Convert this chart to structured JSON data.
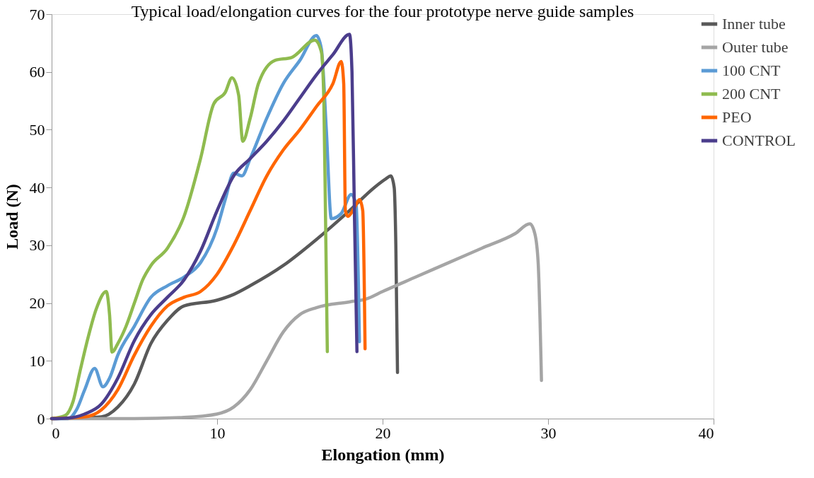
{
  "chart_data": {
    "type": "line",
    "title": "Typical load/elongation curves for the four prototype nerve guide samples",
    "xlabel": "Elongation (mm)",
    "ylabel": "Load (N)",
    "xlim": [
      0,
      40
    ],
    "xticks": [
      0,
      10,
      20,
      30,
      40
    ],
    "ylim": [
      0,
      70
    ],
    "yticks": [
      0,
      10,
      20,
      30,
      40,
      50,
      60,
      70
    ],
    "grid": false,
    "legend": "right",
    "marker": "none",
    "line_style": "solid",
    "series": [
      {
        "name": "Inner tube",
        "color": "#595959",
        "x": [
          0,
          3,
          4,
          5,
          6,
          7,
          8,
          10,
          11,
          12,
          14,
          16,
          18,
          19.5,
          20.2,
          20.5,
          20.7,
          20.8,
          20.9
        ],
        "values": [
          0,
          0.3,
          2,
          6,
          13,
          17,
          19.5,
          20.5,
          21.5,
          23,
          26.5,
          31,
          36,
          40,
          41.5,
          42,
          40,
          30,
          8
        ]
      },
      {
        "name": "Outer tube",
        "color": "#a5a5a5",
        "x": [
          0,
          5,
          8,
          10,
          11,
          12,
          13,
          14,
          15,
          16,
          18,
          19,
          20,
          22,
          24,
          26,
          28,
          28.9,
          29.2,
          29.4,
          29.6
        ],
        "values": [
          0,
          0,
          0.2,
          0.8,
          2,
          5,
          10,
          15,
          18,
          19.2,
          20.2,
          20.7,
          22,
          24.5,
          27,
          29.5,
          32,
          33.7,
          32,
          27,
          6.6
        ]
      },
      {
        "name": "100 CNT",
        "color": "#5b9bd5",
        "x": [
          0,
          1,
          1.5,
          2,
          2.6,
          3.1,
          3.5,
          4,
          5,
          6,
          7,
          8,
          9,
          10,
          10.5,
          11,
          11.5,
          12,
          13,
          14,
          15,
          16,
          16.3,
          16.6,
          16.9,
          17.5,
          18.1,
          18.4,
          18.6
        ],
        "values": [
          0,
          0,
          1.5,
          5,
          8.7,
          5.5,
          7,
          11,
          16,
          21,
          23,
          24.5,
          27,
          33,
          38,
          42.5,
          42,
          45,
          52,
          58,
          62,
          66.3,
          64,
          50,
          34.6,
          35.5,
          38.8,
          37,
          13.3
        ]
      },
      {
        "name": "200 CNT",
        "color": "#8fbb4f",
        "x": [
          0,
          0.8,
          1.3,
          1.7,
          2.2,
          2.7,
          3.3,
          3.5,
          3.65,
          4,
          4.5,
          5,
          5.5,
          6,
          7,
          8,
          9,
          9.8,
          10.5,
          10.9,
          11.3,
          11.55,
          12,
          12.5,
          13.5,
          14.5,
          15.9,
          16.3,
          16.45,
          16.55,
          16.66
        ],
        "values": [
          0,
          0.5,
          3,
          8,
          14,
          19,
          22,
          18,
          11.5,
          13,
          16,
          20,
          24,
          26.5,
          29.5,
          35,
          45,
          54.5,
          56.5,
          59,
          56,
          48,
          52,
          58,
          62,
          62.5,
          65.5,
          63.5,
          55,
          35,
          11.6
        ]
      },
      {
        "name": "PEO",
        "color": "#ff6600",
        "x": [
          0,
          2,
          3,
          4,
          5,
          6,
          7,
          8,
          9,
          10,
          11,
          12,
          13,
          14,
          15,
          16,
          17,
          17.5,
          17.65,
          17.75,
          17.9,
          18.3,
          18.6,
          18.8,
          18.94
        ],
        "values": [
          0,
          0.3,
          1.5,
          5,
          11,
          16,
          19.5,
          21,
          22,
          25,
          30,
          36,
          42,
          46.5,
          50,
          54,
          58,
          61.8,
          58,
          36,
          35,
          36.5,
          37.9,
          36,
          12.1
        ]
      },
      {
        "name": "CONTROL",
        "color": "#4b3d8c",
        "x": [
          0,
          1,
          2,
          3,
          4,
          5,
          6,
          7,
          8,
          9,
          10,
          11,
          12,
          13,
          14,
          15,
          16,
          17,
          18,
          18.15,
          18.3,
          18.45
        ],
        "values": [
          0,
          0.1,
          0.8,
          2.5,
          7,
          13.5,
          18,
          21,
          24,
          29,
          36,
          42,
          45,
          48,
          51.5,
          55.5,
          59.5,
          63,
          66.5,
          60,
          35,
          11.6
        ]
      }
    ]
  }
}
